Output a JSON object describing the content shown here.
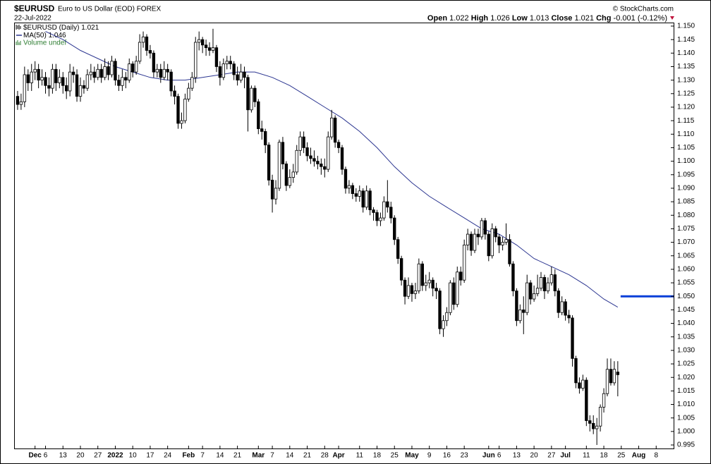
{
  "header": {
    "symbol": "$EURUSD",
    "name": "Euro to US Dollar (EOD) FOREX",
    "date": "22-Jul-2022",
    "source": "© StockCharts.com",
    "open_label": "Open",
    "high_label": "High",
    "low_label": "Low",
    "close_label": "Close",
    "chg_label": "Chg",
    "chg": -0.001,
    "chg_pct": {
      "value": -0.12,
      "label": "(-0.12%)"
    }
  },
  "chart_data": {
    "type": "candlestick",
    "name": "$EURUSD (Daily)",
    "color": "#000000",
    "volume_note": "Volume undef",
    "x": [
      "2021-11-24",
      "2021-11-25",
      "2021-11-26",
      "2021-11-29",
      "2021-11-30",
      "2021-12-01",
      "2021-12-02",
      "2021-12-03",
      "2021-12-06",
      "2021-12-07",
      "2021-12-08",
      "2021-12-09",
      "2021-12-10",
      "2021-12-13",
      "2021-12-14",
      "2021-12-15",
      "2021-12-16",
      "2021-12-17",
      "2021-12-20",
      "2021-12-21",
      "2021-12-22",
      "2021-12-23",
      "2021-12-24",
      "2021-12-27",
      "2021-12-28",
      "2021-12-29",
      "2021-12-30",
      "2021-12-31",
      "2022-01-03",
      "2022-01-04",
      "2022-01-05",
      "2022-01-06",
      "2022-01-07",
      "2022-01-10",
      "2022-01-11",
      "2022-01-12",
      "2022-01-13",
      "2022-01-14",
      "2022-01-17",
      "2022-01-18",
      "2022-01-19",
      "2022-01-20",
      "2022-01-21",
      "2022-01-24",
      "2022-01-25",
      "2022-01-26",
      "2022-01-27",
      "2022-01-28",
      "2022-01-31",
      "2022-02-01",
      "2022-02-02",
      "2022-02-03",
      "2022-02-04",
      "2022-02-07",
      "2022-02-08",
      "2022-02-09",
      "2022-02-10",
      "2022-02-11",
      "2022-02-14",
      "2022-02-15",
      "2022-02-16",
      "2022-02-17",
      "2022-02-18",
      "2022-02-21",
      "2022-02-22",
      "2022-02-23",
      "2022-02-24",
      "2022-02-25",
      "2022-02-28",
      "2022-03-01",
      "2022-03-02",
      "2022-03-03",
      "2022-03-04",
      "2022-03-07",
      "2022-03-08",
      "2022-03-09",
      "2022-03-10",
      "2022-03-11",
      "2022-03-14",
      "2022-03-15",
      "2022-03-16",
      "2022-03-17",
      "2022-03-18",
      "2022-03-21",
      "2022-03-22",
      "2022-03-23",
      "2022-03-24",
      "2022-03-25",
      "2022-03-28",
      "2022-03-29",
      "2022-03-30",
      "2022-03-31",
      "2022-04-01",
      "2022-04-04",
      "2022-04-05",
      "2022-04-06",
      "2022-04-07",
      "2022-04-08",
      "2022-04-11",
      "2022-04-12",
      "2022-04-13",
      "2022-04-14",
      "2022-04-15",
      "2022-04-18",
      "2022-04-19",
      "2022-04-20",
      "2022-04-21",
      "2022-04-22",
      "2022-04-25",
      "2022-04-26",
      "2022-04-27",
      "2022-04-28",
      "2022-04-29",
      "2022-05-02",
      "2022-05-03",
      "2022-05-04",
      "2022-05-05",
      "2022-05-06",
      "2022-05-09",
      "2022-05-10",
      "2022-05-11",
      "2022-05-12",
      "2022-05-13",
      "2022-05-16",
      "2022-05-17",
      "2022-05-18",
      "2022-05-19",
      "2022-05-20",
      "2022-05-23",
      "2022-05-24",
      "2022-05-25",
      "2022-05-26",
      "2022-05-27",
      "2022-05-30",
      "2022-05-31",
      "2022-06-01",
      "2022-06-02",
      "2022-06-03",
      "2022-06-06",
      "2022-06-07",
      "2022-06-08",
      "2022-06-09",
      "2022-06-10",
      "2022-06-13",
      "2022-06-14",
      "2022-06-15",
      "2022-06-16",
      "2022-06-17",
      "2022-06-20",
      "2022-06-21",
      "2022-06-22",
      "2022-06-23",
      "2022-06-24",
      "2022-06-27",
      "2022-06-28",
      "2022-06-29",
      "2022-06-30",
      "2022-07-01",
      "2022-07-04",
      "2022-07-05",
      "2022-07-06",
      "2022-07-07",
      "2022-07-08",
      "2022-07-11",
      "2022-07-12",
      "2022-07-13",
      "2022-07-14",
      "2022-07-15",
      "2022-07-18",
      "2022-07-19",
      "2022-07-20",
      "2022-07-21",
      "2022-07-22"
    ],
    "open": [
      1.124,
      1.121,
      1.122,
      1.132,
      1.129,
      1.133,
      1.134,
      1.13,
      1.131,
      1.128,
      1.127,
      1.134,
      1.129,
      1.131,
      1.128,
      1.126,
      1.133,
      1.132,
      1.124,
      1.128,
      1.127,
      1.132,
      1.133,
      1.131,
      1.134,
      1.131,
      1.135,
      1.132,
      1.137,
      1.13,
      1.128,
      1.131,
      1.13,
      1.136,
      1.133,
      1.137,
      1.144,
      1.146,
      1.141,
      1.14,
      1.133,
      1.134,
      1.131,
      1.134,
      1.133,
      1.126,
      1.124,
      1.114,
      1.115,
      1.123,
      1.127,
      1.131,
      1.144,
      1.145,
      1.143,
      1.142,
      1.141,
      1.142,
      1.135,
      1.131,
      1.136,
      1.137,
      1.136,
      1.132,
      1.13,
      1.133,
      1.131,
      1.119,
      1.127,
      1.122,
      1.112,
      1.111,
      1.106,
      1.093,
      1.086,
      1.09,
      1.107,
      1.099,
      1.091,
      1.094,
      1.096,
      1.104,
      1.109,
      1.105,
      1.102,
      1.101,
      1.1,
      1.099,
      1.098,
      1.097,
      1.109,
      1.116,
      1.107,
      1.105,
      1.097,
      1.09,
      1.091,
      1.088,
      1.087,
      1.089,
      1.083,
      1.089,
      1.082,
      1.081,
      1.078,
      1.079,
      1.085,
      1.083,
      1.079,
      1.071,
      1.064,
      1.056,
      1.05,
      1.054,
      1.051,
      1.052,
      1.062,
      1.054,
      1.055,
      1.056,
      1.053,
      1.052,
      1.038,
      1.041,
      1.044,
      1.055,
      1.047,
      1.059,
      1.056,
      1.069,
      1.073,
      1.067,
      1.073,
      1.072,
      1.078,
      1.073,
      1.065,
      1.075,
      1.072,
      1.069,
      1.07,
      1.071,
      1.062,
      1.052,
      1.041,
      1.045,
      1.044,
      1.055,
      1.049,
      1.051,
      1.053,
      1.057,
      1.052,
      1.055,
      1.058,
      1.052,
      1.044,
      1.048,
      1.043,
      1.042,
      1.027,
      1.018,
      1.016,
      1.019,
      1.004,
      1.003,
      1.001,
      1.002,
      1.009,
      1.014,
      1.023,
      1.018,
      1.022
    ],
    "high": [
      1.126,
      1.125,
      1.135,
      1.134,
      1.136,
      1.137,
      1.136,
      1.134,
      1.133,
      1.131,
      1.136,
      1.136,
      1.134,
      1.133,
      1.131,
      1.136,
      1.135,
      1.134,
      1.131,
      1.13,
      1.134,
      1.136,
      1.135,
      1.136,
      1.136,
      1.138,
      1.137,
      1.139,
      1.138,
      1.132,
      1.134,
      1.133,
      1.138,
      1.137,
      1.139,
      1.147,
      1.148,
      1.147,
      1.143,
      1.141,
      1.136,
      1.136,
      1.137,
      1.136,
      1.134,
      1.128,
      1.125,
      1.118,
      1.125,
      1.129,
      1.133,
      1.146,
      1.148,
      1.146,
      1.145,
      1.144,
      1.149,
      1.143,
      1.137,
      1.138,
      1.139,
      1.139,
      1.137,
      1.135,
      1.136,
      1.135,
      1.132,
      1.128,
      1.128,
      1.123,
      1.115,
      1.112,
      1.107,
      1.095,
      1.093,
      1.108,
      1.109,
      1.1,
      1.097,
      1.099,
      1.106,
      1.111,
      1.111,
      1.107,
      1.105,
      1.104,
      1.102,
      1.101,
      1.101,
      1.111,
      1.119,
      1.117,
      1.108,
      1.106,
      1.098,
      1.093,
      1.092,
      1.09,
      1.091,
      1.09,
      1.091,
      1.09,
      1.083,
      1.082,
      1.081,
      1.087,
      1.093,
      1.085,
      1.08,
      1.072,
      1.065,
      1.057,
      1.057,
      1.055,
      1.055,
      1.064,
      1.063,
      1.058,
      1.059,
      1.057,
      1.055,
      1.053,
      1.043,
      1.046,
      1.056,
      1.057,
      1.061,
      1.061,
      1.071,
      1.075,
      1.074,
      1.075,
      1.075,
      1.079,
      1.079,
      1.074,
      1.077,
      1.076,
      1.073,
      1.072,
      1.077,
      1.073,
      1.063,
      1.053,
      1.047,
      1.05,
      1.058,
      1.056,
      1.054,
      1.058,
      1.059,
      1.058,
      1.057,
      1.061,
      1.06,
      1.053,
      1.05,
      1.049,
      1.045,
      1.043,
      1.028,
      1.02,
      1.021,
      1.02,
      1.006,
      1.006,
      1.005,
      1.01,
      1.016,
      1.027,
      1.027,
      1.026,
      1.026
    ],
    "low": [
      1.119,
      1.119,
      1.12,
      1.126,
      1.126,
      1.13,
      1.127,
      1.128,
      1.125,
      1.124,
      1.125,
      1.126,
      1.127,
      1.125,
      1.123,
      1.124,
      1.129,
      1.122,
      1.122,
      1.125,
      1.126,
      1.13,
      1.129,
      1.13,
      1.129,
      1.13,
      1.13,
      1.131,
      1.128,
      1.126,
      1.126,
      1.127,
      1.129,
      1.131,
      1.132,
      1.136,
      1.142,
      1.139,
      1.138,
      1.131,
      1.131,
      1.129,
      1.13,
      1.13,
      1.124,
      1.121,
      1.112,
      1.112,
      1.114,
      1.122,
      1.126,
      1.129,
      1.141,
      1.14,
      1.139,
      1.139,
      1.14,
      1.133,
      1.128,
      1.13,
      1.134,
      1.134,
      1.13,
      1.128,
      1.129,
      1.127,
      1.111,
      1.118,
      1.12,
      1.11,
      1.108,
      1.103,
      1.091,
      1.081,
      1.084,
      1.089,
      1.097,
      1.089,
      1.09,
      1.092,
      1.095,
      1.102,
      1.103,
      1.1,
      1.099,
      1.098,
      1.097,
      1.095,
      1.094,
      1.096,
      1.108,
      1.105,
      1.103,
      1.095,
      1.088,
      1.088,
      1.086,
      1.085,
      1.085,
      1.081,
      1.082,
      1.08,
      1.078,
      1.076,
      1.076,
      1.078,
      1.081,
      1.077,
      1.069,
      1.062,
      1.054,
      1.047,
      1.049,
      1.048,
      1.049,
      1.051,
      1.052,
      1.052,
      1.053,
      1.05,
      1.049,
      1.036,
      1.035,
      1.039,
      1.043,
      1.045,
      1.046,
      1.054,
      1.055,
      1.067,
      1.065,
      1.066,
      1.069,
      1.071,
      1.071,
      1.063,
      1.064,
      1.07,
      1.066,
      1.067,
      1.069,
      1.061,
      1.05,
      1.039,
      1.04,
      1.036,
      1.043,
      1.047,
      1.048,
      1.05,
      1.052,
      1.049,
      1.051,
      1.054,
      1.05,
      1.042,
      1.043,
      1.041,
      1.04,
      1.024,
      1.016,
      1.014,
      1.015,
      1.002,
      1.0,
      0.999,
      0.995,
      1.0,
      1.007,
      1.013,
      1.017,
      1.017,
      1.013
    ],
    "close": [
      1.121,
      1.122,
      1.132,
      1.129,
      1.133,
      1.134,
      1.13,
      1.131,
      1.128,
      1.127,
      1.134,
      1.129,
      1.131,
      1.128,
      1.126,
      1.133,
      1.132,
      1.124,
      1.128,
      1.127,
      1.132,
      1.133,
      1.131,
      1.134,
      1.131,
      1.135,
      1.132,
      1.137,
      1.13,
      1.128,
      1.131,
      1.13,
      1.136,
      1.133,
      1.137,
      1.144,
      1.146,
      1.141,
      1.14,
      1.133,
      1.134,
      1.131,
      1.134,
      1.133,
      1.126,
      1.124,
      1.114,
      1.115,
      1.123,
      1.127,
      1.131,
      1.144,
      1.145,
      1.143,
      1.142,
      1.141,
      1.142,
      1.135,
      1.131,
      1.136,
      1.137,
      1.136,
      1.132,
      1.13,
      1.133,
      1.131,
      1.119,
      1.127,
      1.122,
      1.112,
      1.111,
      1.106,
      1.093,
      1.086,
      1.09,
      1.107,
      1.099,
      1.091,
      1.094,
      1.096,
      1.104,
      1.109,
      1.105,
      1.102,
      1.101,
      1.1,
      1.099,
      1.098,
      1.097,
      1.109,
      1.116,
      1.107,
      1.105,
      1.097,
      1.09,
      1.091,
      1.088,
      1.087,
      1.089,
      1.083,
      1.089,
      1.082,
      1.081,
      1.078,
      1.079,
      1.085,
      1.083,
      1.079,
      1.071,
      1.064,
      1.056,
      1.05,
      1.054,
      1.051,
      1.052,
      1.062,
      1.054,
      1.055,
      1.056,
      1.053,
      1.052,
      1.038,
      1.041,
      1.044,
      1.055,
      1.047,
      1.059,
      1.056,
      1.069,
      1.073,
      1.067,
      1.073,
      1.072,
      1.078,
      1.073,
      1.065,
      1.075,
      1.072,
      1.069,
      1.07,
      1.071,
      1.062,
      1.052,
      1.041,
      1.045,
      1.044,
      1.055,
      1.049,
      1.051,
      1.053,
      1.057,
      1.052,
      1.055,
      1.058,
      1.052,
      1.044,
      1.048,
      1.043,
      1.042,
      1.027,
      1.018,
      1.016,
      1.019,
      1.004,
      1.003,
      1.001,
      1.002,
      1.009,
      1.014,
      1.023,
      1.018,
      1.023,
      1.021
    ],
    "overlays": [
      {
        "name": "MA(50)",
        "color": "#2b3590",
        "x": [
          "2021-12-06",
          "2021-12-13",
          "2021-12-20",
          "2021-12-27",
          "2022-01-03",
          "2022-01-10",
          "2022-01-17",
          "2022-01-24",
          "2022-01-31",
          "2022-02-07",
          "2022-02-14",
          "2022-02-21",
          "2022-02-28",
          "2022-03-07",
          "2022-03-14",
          "2022-03-21",
          "2022-03-28",
          "2022-04-04",
          "2022-04-11",
          "2022-04-18",
          "2022-04-25",
          "2022-05-02",
          "2022-05-09",
          "2022-05-16",
          "2022-05-23",
          "2022-05-30",
          "2022-06-06",
          "2022-06-13",
          "2022-06-20",
          "2022-06-27",
          "2022-07-04",
          "2022-07-11",
          "2022-07-18",
          "2022-07-22"
        ],
        "values": [
          1.148,
          1.145,
          1.141,
          1.138,
          1.135,
          1.133,
          1.131,
          1.13,
          1.13,
          1.131,
          1.132,
          1.133,
          1.133,
          1.131,
          1.128,
          1.124,
          1.12,
          1.116,
          1.111,
          1.105,
          1.098,
          1.092,
          1.087,
          1.083,
          1.079,
          1.075,
          1.073,
          1.069,
          1.064,
          1.061,
          1.058,
          1.054,
          1.049,
          1.046
        ]
      }
    ],
    "hline": {
      "value": 1.05,
      "color": "#0a3fd8"
    },
    "xlim": [
      "2021-11-23",
      "2022-08-15"
    ],
    "ylim": [
      0.9937,
      1.1513
    ],
    "yticks": [
      {
        "value": 1.15,
        "label": "1.150"
      },
      1.145,
      {
        "value": 1.14,
        "label": "1.140"
      },
      1.135,
      {
        "value": 1.13,
        "label": "1.130"
      },
      1.125,
      {
        "value": 1.12,
        "label": "1.120"
      },
      1.115,
      {
        "value": 1.11,
        "label": "1.110"
      },
      1.105,
      {
        "value": 1.1,
        "label": "1.100"
      },
      1.095,
      {
        "value": 1.09,
        "label": "1.090"
      },
      1.085,
      {
        "value": 1.08,
        "label": "1.080"
      },
      1.075,
      {
        "value": 1.07,
        "label": "1.070"
      },
      1.065,
      {
        "value": 1.06,
        "label": "1.060"
      },
      1.055,
      {
        "value": 1.05,
        "label": "1.050"
      },
      1.045,
      {
        "value": 1.04,
        "label": "1.040"
      },
      1.035,
      {
        "value": 1.03,
        "label": "1.030"
      },
      1.025,
      {
        "value": 1.02,
        "label": "1.020"
      },
      1.015,
      {
        "value": 1.01,
        "label": "1.010"
      },
      1.005,
      {
        "value": 1.0,
        "label": "1.000"
      },
      0.995
    ],
    "xticks": [
      {
        "value": "2021-12-01",
        "label": "Dec"
      },
      {
        "value": "2021-12-06",
        "label": "6"
      },
      {
        "value": "2021-12-13",
        "label": "13"
      },
      {
        "value": "2021-12-20",
        "label": "20"
      },
      {
        "value": "2021-12-27",
        "label": "27"
      },
      {
        "value": "2022-01-03",
        "label": "2022"
      },
      {
        "value": "2022-01-10",
        "label": "10"
      },
      {
        "value": "2022-01-17",
        "label": "17"
      },
      {
        "value": "2022-01-24",
        "label": "24"
      },
      {
        "value": "2022-02-01",
        "label": "Feb"
      },
      {
        "value": "2022-02-07",
        "label": "7"
      },
      {
        "value": "2022-02-14",
        "label": "14"
      },
      {
        "value": "2022-02-21",
        "label": "21"
      },
      {
        "value": "2022-03-01",
        "label": "Mar"
      },
      {
        "value": "2022-03-07",
        "label": "7"
      },
      {
        "value": "2022-03-14",
        "label": "14"
      },
      {
        "value": "2022-03-21",
        "label": "21"
      },
      {
        "value": "2022-03-28",
        "label": "28"
      },
      {
        "value": "2022-04-01",
        "label": "Apr"
      },
      {
        "value": "2022-04-11",
        "label": "11"
      },
      {
        "value": "2022-04-18",
        "label": "18"
      },
      {
        "value": "2022-04-25",
        "label": "25"
      },
      {
        "value": "2022-05-02",
        "label": "May"
      },
      {
        "value": "2022-05-09",
        "label": "9"
      },
      {
        "value": "2022-05-16",
        "label": "16"
      },
      {
        "value": "2022-05-23",
        "label": "23"
      },
      {
        "value": "2022-06-01",
        "label": "Jun"
      },
      {
        "value": "2022-06-06",
        "label": "6"
      },
      {
        "value": "2022-06-13",
        "label": "13"
      },
      {
        "value": "2022-06-20",
        "label": "20"
      },
      {
        "value": "2022-06-27",
        "label": "27"
      },
      {
        "value": "2022-07-01",
        "label": "Jul"
      },
      {
        "value": "2022-07-11",
        "label": "11"
      },
      {
        "value": "2022-07-18",
        "label": "18"
      },
      {
        "value": "2022-07-25",
        "label": "25"
      },
      {
        "value": "2022-08-01",
        "label": "Aug"
      },
      {
        "value": "2022-08-08",
        "label": "8"
      }
    ]
  }
}
